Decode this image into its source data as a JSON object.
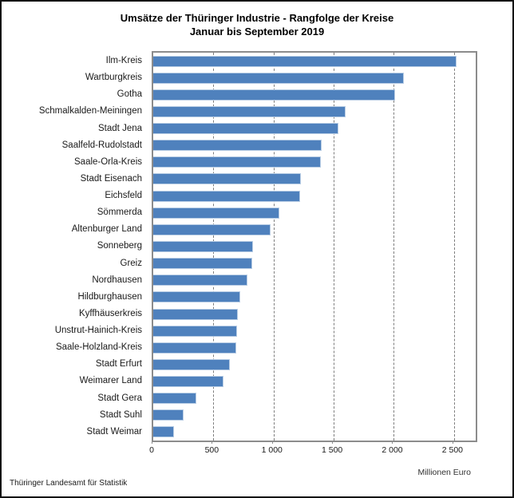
{
  "window": {
    "background_color": "#ffffff",
    "border_color": "#111111"
  },
  "header": {
    "title_line1": "Umsätze der Thüringer Industrie - Rangfolge der Kreise",
    "title_line2": "Januar bis September 2019"
  },
  "footer": {
    "source": "Thüringer Landesamt für Statistik"
  },
  "chart_data": {
    "type": "bar",
    "orientation": "horizontal",
    "title": "Umsätze der Thüringer Industrie - Rangfolge der Kreise",
    "subtitle": "Januar bis September 2019",
    "xlabel": "Millionen Euro",
    "ylabel": "",
    "unit_label": "Millionen Euro",
    "categories": [
      "Ilm-Kreis",
      "Wartburgkreis",
      "Gotha",
      "Schmalkalden-Meiningen",
      "Stadt Jena",
      "Saalfeld-Rudolstadt",
      "Saale-Orla-Kreis",
      "Stadt Eisenach",
      "Eichsfeld",
      "Sömmerda",
      "Altenburger Land",
      "Sonneberg",
      "Greiz",
      "Nordhausen",
      "Hildburghausen",
      "Kyffhäuserkreis",
      "Unstrut-Hainich-Kreis",
      "Saale-Holzland-Kreis",
      "Stadt Erfurt",
      "Weimarer Land",
      "Stadt Gera",
      "Stadt Suhl",
      "Stadt Weimar"
    ],
    "values": [
      2520,
      2080,
      2010,
      1600,
      1540,
      1400,
      1390,
      1225,
      1220,
      1050,
      975,
      830,
      820,
      780,
      720,
      700,
      695,
      690,
      640,
      585,
      360,
      250,
      175
    ],
    "xlim": [
      0,
      2680
    ],
    "xticks": [
      0,
      500,
      1000,
      1500,
      2000,
      2500
    ],
    "xtick_labels": [
      "0",
      "500",
      "1 000",
      "1 500",
      "2 000",
      "2 500"
    ],
    "grid": "vertical-dashed",
    "legend_position": "none",
    "bar_color": "#4f81bd",
    "bar_border_color": "#b7cce4",
    "gridline_color": "#7f7f7f",
    "plot_border_color": "#8c8c8c"
  }
}
